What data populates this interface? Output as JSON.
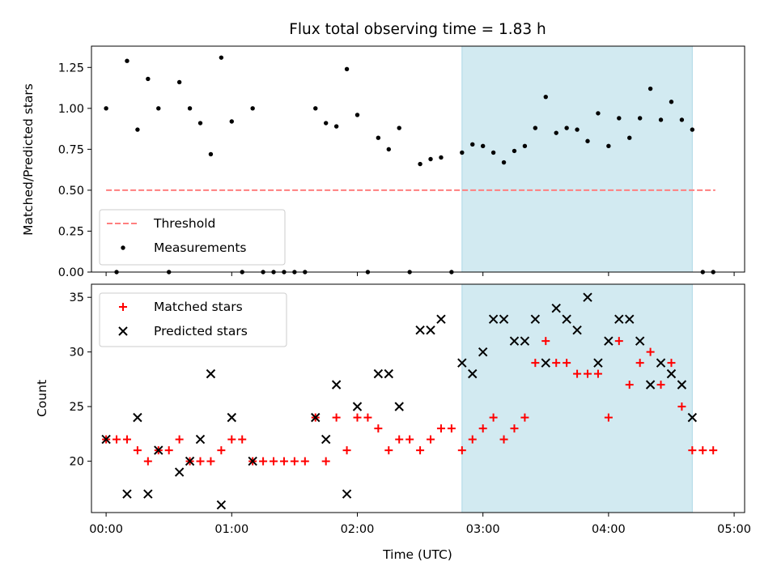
{
  "figure": {
    "title": "Flux total observing time = 1.83 h",
    "xlabel": "Time (UTC)",
    "top_ylabel": "Matched/Predicted stars",
    "bottom_ylabel": "Count"
  },
  "chart_data": [
    {
      "type": "scatter",
      "title": "Flux total observing time = 1.83 h",
      "xlabel": "",
      "ylabel": "Matched/Predicted stars",
      "x_unit": "minutes after 00:00 UTC",
      "xlim": [
        -7,
        305
      ],
      "ylim": [
        0,
        1.38
      ],
      "x_ticks": [
        0,
        60,
        120,
        180,
        240,
        300
      ],
      "x_tick_labels": [
        "00:00",
        "01:00",
        "02:00",
        "03:00",
        "04:00",
        "05:00"
      ],
      "x_tick_labels_shown": false,
      "y_ticks": [
        0,
        0.25,
        0.5,
        0.75,
        1.0,
        1.25
      ],
      "y_tick_labels": [
        "0.00",
        "0.25",
        "0.50",
        "0.75",
        "1.00",
        "1.25"
      ],
      "legend_position": "lower-left",
      "shaded_region": {
        "x_start": 170,
        "x_end": 280,
        "color": "#add8e6"
      },
      "series": [
        {
          "name": "Threshold",
          "style": "dashed-line",
          "color": "#ff7f7f",
          "x": [
            0,
            291
          ],
          "y": [
            0.5,
            0.5
          ]
        },
        {
          "name": "Measurements",
          "style": "dot",
          "color": "#000000",
          "points": [
            [
              0,
              1.0
            ],
            [
              5,
              0.0
            ],
            [
              10,
              1.29
            ],
            [
              15,
              0.87
            ],
            [
              20,
              1.18
            ],
            [
              25,
              1.0
            ],
            [
              30,
              0.0
            ],
            [
              35,
              1.16
            ],
            [
              40,
              1.0
            ],
            [
              45,
              0.91
            ],
            [
              50,
              0.72
            ],
            [
              55,
              1.31
            ],
            [
              60,
              0.92
            ],
            [
              65,
              0.0
            ],
            [
              70,
              1.0
            ],
            [
              75,
              0.0
            ],
            [
              80,
              0.0
            ],
            [
              85,
              0.0
            ],
            [
              90,
              0.0
            ],
            [
              95,
              0.0
            ],
            [
              100,
              1.0
            ],
            [
              105,
              0.91
            ],
            [
              110,
              0.89
            ],
            [
              115,
              1.24
            ],
            [
              120,
              0.96
            ],
            [
              125,
              0.0
            ],
            [
              130,
              0.82
            ],
            [
              135,
              0.75
            ],
            [
              140,
              0.88
            ],
            [
              145,
              0.0
            ],
            [
              150,
              0.66
            ],
            [
              155,
              0.69
            ],
            [
              160,
              0.7
            ],
            [
              165,
              0.0
            ],
            [
              170,
              0.73
            ],
            [
              175,
              0.78
            ],
            [
              180,
              0.77
            ],
            [
              185,
              0.73
            ],
            [
              190,
              0.67
            ],
            [
              195,
              0.74
            ],
            [
              200,
              0.77
            ],
            [
              205,
              0.88
            ],
            [
              210,
              1.07
            ],
            [
              215,
              0.85
            ],
            [
              220,
              0.88
            ],
            [
              225,
              0.87
            ],
            [
              230,
              0.8
            ],
            [
              235,
              0.97
            ],
            [
              240,
              0.77
            ],
            [
              245,
              0.94
            ],
            [
              250,
              0.82
            ],
            [
              255,
              0.94
            ],
            [
              260,
              1.12
            ],
            [
              265,
              0.93
            ],
            [
              270,
              1.04
            ],
            [
              275,
              0.93
            ],
            [
              280,
              0.87
            ],
            [
              285,
              0.0
            ],
            [
              290,
              0.0
            ]
          ]
        }
      ]
    },
    {
      "type": "scatter",
      "title": "",
      "xlabel": "Time (UTC)",
      "ylabel": "Count",
      "x_unit": "minutes after 00:00 UTC",
      "xlim": [
        -7,
        305
      ],
      "ylim": [
        15.3,
        36.2
      ],
      "x_ticks": [
        0,
        60,
        120,
        180,
        240,
        300
      ],
      "x_tick_labels": [
        "00:00",
        "01:00",
        "02:00",
        "03:00",
        "04:00",
        "05:00"
      ],
      "y_ticks": [
        20,
        25,
        30,
        35
      ],
      "y_tick_labels": [
        "20",
        "25",
        "30",
        "35"
      ],
      "legend_position": "upper-left",
      "shaded_region": {
        "x_start": 170,
        "x_end": 280,
        "color": "#add8e6"
      },
      "series": [
        {
          "name": "Matched stars",
          "marker": "plus",
          "color": "#ff0000",
          "points": [
            [
              0,
              22
            ],
            [
              5,
              22
            ],
            [
              10,
              22
            ],
            [
              15,
              21
            ],
            [
              20,
              20
            ],
            [
              25,
              21
            ],
            [
              30,
              21
            ],
            [
              35,
              22
            ],
            [
              40,
              20
            ],
            [
              45,
              20
            ],
            [
              50,
              20
            ],
            [
              55,
              21
            ],
            [
              60,
              22
            ],
            [
              65,
              22
            ],
            [
              70,
              20
            ],
            [
              75,
              20
            ],
            [
              80,
              20
            ],
            [
              85,
              20
            ],
            [
              90,
              20
            ],
            [
              95,
              20
            ],
            [
              100,
              24
            ],
            [
              105,
              20
            ],
            [
              110,
              24
            ],
            [
              115,
              21
            ],
            [
              120,
              24
            ],
            [
              125,
              24
            ],
            [
              130,
              23
            ],
            [
              135,
              21
            ],
            [
              140,
              22
            ],
            [
              145,
              22
            ],
            [
              150,
              21
            ],
            [
              155,
              22
            ],
            [
              160,
              23
            ],
            [
              165,
              23
            ],
            [
              170,
              21
            ],
            [
              175,
              22
            ],
            [
              180,
              23
            ],
            [
              185,
              24
            ],
            [
              190,
              22
            ],
            [
              195,
              23
            ],
            [
              200,
              24
            ],
            [
              205,
              29
            ],
            [
              210,
              31
            ],
            [
              215,
              29
            ],
            [
              220,
              29
            ],
            [
              225,
              28
            ],
            [
              230,
              28
            ],
            [
              235,
              28
            ],
            [
              240,
              24
            ],
            [
              245,
              31
            ],
            [
              250,
              27
            ],
            [
              255,
              29
            ],
            [
              260,
              30
            ],
            [
              265,
              27
            ],
            [
              270,
              29
            ],
            [
              275,
              25
            ],
            [
              280,
              21
            ],
            [
              285,
              21
            ],
            [
              290,
              21
            ]
          ]
        },
        {
          "name": "Predicted stars",
          "marker": "x",
          "color": "#000000",
          "points": [
            [
              0,
              22
            ],
            [
              10,
              17
            ],
            [
              15,
              24
            ],
            [
              20,
              17
            ],
            [
              25,
              21
            ],
            [
              35,
              19
            ],
            [
              40,
              20
            ],
            [
              45,
              22
            ],
            [
              50,
              28
            ],
            [
              55,
              16
            ],
            [
              60,
              24
            ],
            [
              70,
              20
            ],
            [
              100,
              24
            ],
            [
              105,
              22
            ],
            [
              110,
              27
            ],
            [
              115,
              17
            ],
            [
              120,
              25
            ],
            [
              130,
              28
            ],
            [
              135,
              28
            ],
            [
              140,
              25
            ],
            [
              150,
              32
            ],
            [
              155,
              32
            ],
            [
              160,
              33
            ],
            [
              170,
              29
            ],
            [
              175,
              28
            ],
            [
              180,
              30
            ],
            [
              185,
              33
            ],
            [
              190,
              33
            ],
            [
              195,
              31
            ],
            [
              200,
              31
            ],
            [
              205,
              33
            ],
            [
              210,
              29
            ],
            [
              215,
              34
            ],
            [
              220,
              33
            ],
            [
              225,
              32
            ],
            [
              230,
              35
            ],
            [
              235,
              29
            ],
            [
              240,
              31
            ],
            [
              245,
              33
            ],
            [
              250,
              33
            ],
            [
              255,
              31
            ],
            [
              260,
              27
            ],
            [
              265,
              29
            ],
            [
              270,
              28
            ],
            [
              275,
              27
            ],
            [
              280,
              24
            ]
          ]
        }
      ]
    }
  ]
}
